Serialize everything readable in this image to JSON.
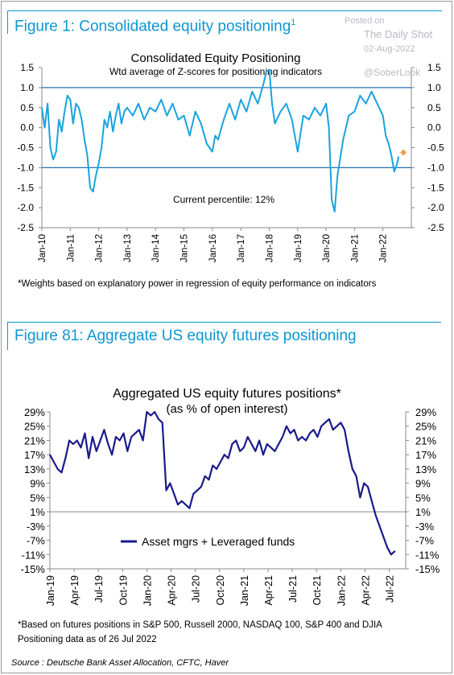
{
  "watermark": {
    "line1": "Posted on",
    "line2": "The Daily Shot",
    "date": "02-Aug-2022",
    "handle": "@SoberLook"
  },
  "figure1": {
    "heading": "Figure 1: Consolidated equity positioning",
    "heading_sup": "1",
    "footnote": "*Weights based on explanatory power in regression of equity performance on indicators",
    "chart_data": {
      "type": "line",
      "title": "Consolidated Equity Positioning",
      "subtitle": "Wtd average of Z-scores for positioning indicators",
      "annotation": "Current percentile: 12%",
      "ylim": [
        -2.5,
        1.5
      ],
      "yticks": [
        "1.5",
        "1.0",
        "0.5",
        "0.0",
        "-0.5",
        "-1.0",
        "-1.5",
        "-2.0",
        "-2.5"
      ],
      "ytick_values": [
        1.5,
        1.0,
        0.5,
        0.0,
        -0.5,
        -1.0,
        -1.5,
        -2.0,
        -2.5
      ],
      "reference_lines": [
        1.0,
        -1.0
      ],
      "xlim": [
        2010.0,
        2023.0
      ],
      "xticks": [
        "Jan-10",
        "Jan-11",
        "Jan-12",
        "Jan-13",
        "Jan-14",
        "Jan-15",
        "Jan-16",
        "Jan-17",
        "Jan-18",
        "Jan-19",
        "Jan-20",
        "Jan-21",
        "Jan-22"
      ],
      "xtick_values": [
        2010,
        2011,
        2012,
        2013,
        2014,
        2015,
        2016,
        2017,
        2018,
        2019,
        2020,
        2021,
        2022
      ],
      "line_color": "#1aa3de",
      "reference_line_color": "#2a6fb6",
      "marker_color": "#f0a050",
      "current_point": [
        2022.55,
        -0.72
      ],
      "series": [
        {
          "x": [
            2010.0,
            2010.1,
            2010.2,
            2010.3,
            2010.4,
            2010.5,
            2010.6,
            2010.7,
            2010.8,
            2010.9,
            2011.0,
            2011.1,
            2011.2,
            2011.3,
            2011.4,
            2011.5,
            2011.6,
            2011.7,
            2011.8,
            2011.9,
            2012.0,
            2012.1,
            2012.2,
            2012.3,
            2012.4,
            2012.5,
            2012.6,
            2012.7,
            2012.8,
            2012.9,
            2013.0,
            2013.2,
            2013.4,
            2013.6,
            2013.8,
            2014.0,
            2014.2,
            2014.4,
            2014.6,
            2014.8,
            2015.0,
            2015.2,
            2015.4,
            2015.6,
            2015.8,
            2016.0,
            2016.1,
            2016.2,
            2016.4,
            2016.6,
            2016.8,
            2017.0,
            2017.2,
            2017.4,
            2017.6,
            2017.8,
            2017.9,
            2018.0,
            2018.1,
            2018.2,
            2018.4,
            2018.6,
            2018.8,
            2019.0,
            2019.2,
            2019.4,
            2019.6,
            2019.8,
            2020.0,
            2020.1,
            2020.2,
            2020.3,
            2020.4,
            2020.6,
            2020.8,
            2021.0,
            2021.2,
            2021.4,
            2021.6,
            2021.8,
            2022.0,
            2022.1,
            2022.2,
            2022.3,
            2022.4,
            2022.5,
            2022.55
          ],
          "y": [
            0.5,
            0.0,
            0.6,
            -0.5,
            -0.8,
            -0.6,
            0.2,
            -0.1,
            0.4,
            0.8,
            0.7,
            0.1,
            0.6,
            0.5,
            0.2,
            -0.3,
            -0.7,
            -1.5,
            -1.6,
            -1.2,
            -0.9,
            -0.5,
            0.2,
            0.0,
            0.4,
            -0.1,
            0.3,
            0.6,
            0.1,
            0.4,
            0.5,
            0.3,
            0.6,
            0.2,
            0.5,
            0.4,
            0.7,
            0.3,
            0.6,
            0.2,
            0.3,
            -0.2,
            0.4,
            0.1,
            -0.4,
            -0.6,
            -0.2,
            -0.3,
            0.2,
            0.6,
            0.2,
            0.7,
            0.4,
            0.9,
            0.6,
            1.1,
            1.4,
            1.45,
            0.6,
            0.1,
            0.4,
            0.6,
            0.2,
            -0.6,
            0.3,
            0.2,
            0.5,
            0.3,
            0.6,
            0.0,
            -1.8,
            -2.1,
            -1.2,
            -0.3,
            0.3,
            0.4,
            0.8,
            0.6,
            0.9,
            0.6,
            0.3,
            -0.2,
            -0.4,
            -0.7,
            -1.1,
            -0.9,
            -0.72
          ]
        }
      ]
    }
  },
  "figure81": {
    "heading": "Figure 81: Aggregate US equity futures positioning",
    "footnote_line1": "*Based on futures positions in S&P 500, Russell 2000, NASDAQ 100, S&P 400 and DJIA",
    "footnote_line2": "Positioning data as of 26 Jul 2022",
    "chart_data": {
      "type": "line",
      "title": "Aggregated US equity futures positions*",
      "subtitle": "(as % of open interest)",
      "ylim": [
        -15,
        29
      ],
      "yticks": [
        "29%",
        "25%",
        "21%",
        "17%",
        "13%",
        "9%",
        "5%",
        "1%",
        "-3%",
        "-7%",
        "-11%",
        "-15%"
      ],
      "ytick_values": [
        29,
        25,
        21,
        17,
        13,
        9,
        5,
        1,
        -3,
        -7,
        -11,
        -15
      ],
      "xlim": [
        2019.0,
        2022.67
      ],
      "xticks": [
        "Jan-19",
        "Apr-19",
        "Jul-19",
        "Oct-19",
        "Jan-20",
        "Apr-20",
        "Jul-20",
        "Oct-20",
        "Jan-21",
        "Apr-21",
        "Jul-21",
        "Oct-21",
        "Jan-22",
        "Apr-22",
        "Jul-22"
      ],
      "xtick_values": [
        2019.0,
        2019.25,
        2019.5,
        2019.75,
        2020.0,
        2020.25,
        2020.5,
        2020.75,
        2021.0,
        2021.25,
        2021.5,
        2021.75,
        2022.0,
        2022.25,
        2022.5
      ],
      "line_color": "#1a1a8c",
      "legend": "Asset mgrs + Leveraged funds",
      "legend_position": "lower-center",
      "series": [
        {
          "name": "Asset mgrs + Leveraged funds",
          "x": [
            2019.0,
            2019.04,
            2019.08,
            2019.12,
            2019.16,
            2019.2,
            2019.24,
            2019.28,
            2019.32,
            2019.36,
            2019.4,
            2019.44,
            2019.48,
            2019.52,
            2019.56,
            2019.6,
            2019.64,
            2019.68,
            2019.72,
            2019.76,
            2019.8,
            2019.84,
            2019.88,
            2019.92,
            2019.96,
            2020.0,
            2020.04,
            2020.08,
            2020.12,
            2020.16,
            2020.2,
            2020.24,
            2020.28,
            2020.32,
            2020.36,
            2020.4,
            2020.44,
            2020.48,
            2020.52,
            2020.56,
            2020.6,
            2020.64,
            2020.68,
            2020.72,
            2020.76,
            2020.8,
            2020.84,
            2020.88,
            2020.92,
            2020.96,
            2021.0,
            2021.04,
            2021.08,
            2021.12,
            2021.16,
            2021.2,
            2021.24,
            2021.28,
            2021.32,
            2021.36,
            2021.4,
            2021.44,
            2021.48,
            2021.52,
            2021.56,
            2021.6,
            2021.64,
            2021.68,
            2021.72,
            2021.76,
            2021.8,
            2021.84,
            2021.88,
            2021.92,
            2021.96,
            2022.0,
            2022.04,
            2022.08,
            2022.12,
            2022.16,
            2022.2,
            2022.24,
            2022.28,
            2022.32,
            2022.36,
            2022.4,
            2022.44,
            2022.48,
            2022.52,
            2022.56
          ],
          "y": [
            17,
            15,
            13,
            12,
            16,
            21,
            20,
            21,
            19,
            23,
            16,
            22,
            18,
            21,
            24,
            20,
            17,
            22,
            21,
            23,
            18,
            22,
            23,
            24,
            21,
            29,
            28,
            29,
            27,
            26,
            7,
            9,
            6,
            3,
            4,
            3,
            2,
            6,
            7,
            8,
            11,
            10,
            14,
            13,
            15,
            17,
            16,
            20,
            21,
            18,
            19,
            22,
            20,
            18,
            21,
            17,
            20,
            19,
            18,
            20,
            22,
            25,
            23,
            24,
            21,
            22,
            21,
            23,
            24,
            22,
            25,
            26,
            27,
            24,
            25,
            26,
            24,
            18,
            13,
            11,
            5,
            9,
            8,
            4,
            0,
            -3,
            -6,
            -9,
            -11,
            -10
          ]
        }
      ]
    }
  },
  "source": "Source : Deutsche Bank Asset Allocation, CFTC, Haver"
}
